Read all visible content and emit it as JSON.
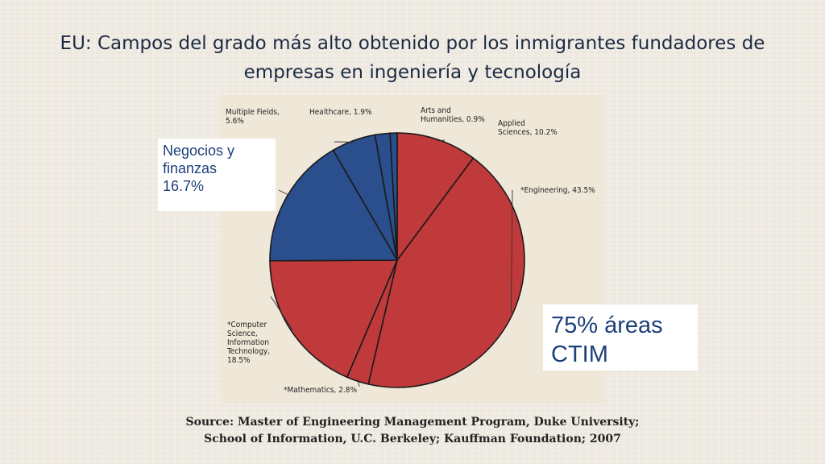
{
  "slide": {
    "title": "EU: Campos del grado más alto obtenido por los inmigrantes fundadores de empresas en ingeniería y tecnología",
    "source_line1": "Source: Master of Engineering Management Program, Duke University;",
    "source_line2": "School of Information, U.C. Berkeley; Kauffman Foundation; 2007"
  },
  "callouts": {
    "negocios": [
      "Negocios y",
      "finanzas",
      "16.7%"
    ],
    "ctim": [
      "75% áreas",
      "CTIM"
    ]
  },
  "chart_data": {
    "type": "pie",
    "title": "",
    "slices": [
      {
        "label": [
          "Applied",
          "Sciences, 10.2%"
        ],
        "value": 10.2,
        "group": "CTIM",
        "color": "#c0393b"
      },
      {
        "label": [
          "*Engineering, 43.5%"
        ],
        "value": 43.5,
        "group": "CTIM",
        "color": "#c0393b"
      },
      {
        "label": [
          "*Mathematics, 2.8%"
        ],
        "value": 2.8,
        "group": "CTIM",
        "color": "#c0393b"
      },
      {
        "label": [
          "*Computer",
          "Science,",
          "Information",
          "Technology,",
          "18.5%"
        ],
        "value": 18.5,
        "group": "CTIM",
        "color": "#c0393b"
      },
      {
        "label": [
          "Negocios y finanzas 16.7%"
        ],
        "value": 16.7,
        "group": "other",
        "color": "#2b4e8c"
      },
      {
        "label": [
          "Multiple Fields,",
          "5.6%"
        ],
        "value": 5.6,
        "group": "other",
        "color": "#2b4e8c"
      },
      {
        "label": [
          "Healthcare, 1.9%"
        ],
        "value": 1.9,
        "group": "other",
        "color": "#2b4e8c"
      },
      {
        "label": [
          "Arts and",
          "Humanities, 0.9%"
        ],
        "value": 0.9,
        "group": "other",
        "color": "#2b4e8c"
      }
    ],
    "start_angle": "12 o'clock",
    "direction": "clockwise",
    "legend": "none"
  }
}
